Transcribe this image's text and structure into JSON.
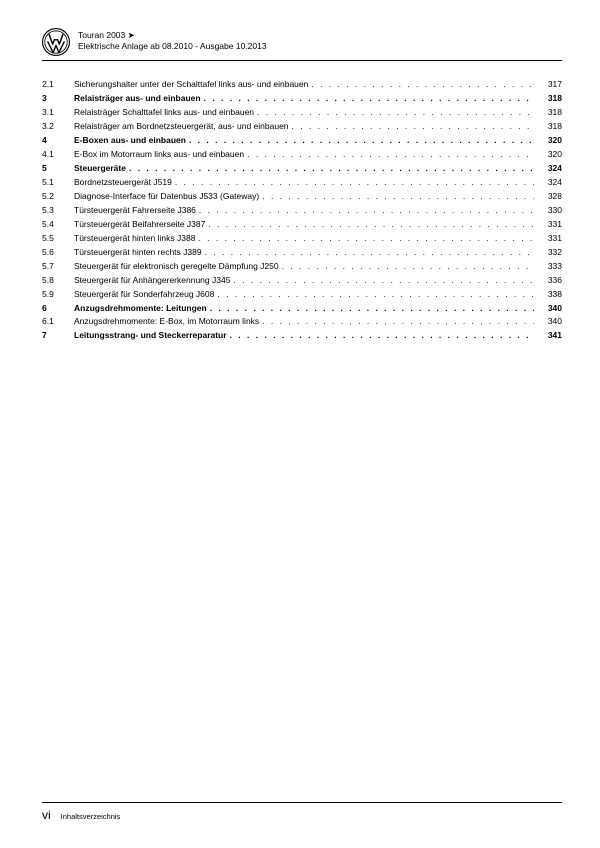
{
  "header": {
    "line1": "Touran 2003 ➤",
    "line2": "Elektrische Anlage ab 08.2010 - Ausgabe 10.2013"
  },
  "toc": [
    {
      "num": "2.1",
      "title": "Sicherungshalter unter der Schalttafel links aus- und einbauen",
      "page": "317",
      "bold": false
    },
    {
      "num": "3",
      "title": "Relaisträger aus- und einbauen",
      "page": "318",
      "bold": true
    },
    {
      "num": "3.1",
      "title": "Relaisträger Schalttafel links aus- und einbauen",
      "page": "318",
      "bold": false
    },
    {
      "num": "3.2",
      "title": "Relaisträger am Bordnetzsteuergerät, aus- und einbauen",
      "page": "318",
      "bold": false
    },
    {
      "num": "4",
      "title": "E-Boxen aus- und einbauen",
      "page": "320",
      "bold": true
    },
    {
      "num": "4.1",
      "title": "E-Box im Motorraum links aus- und einbauen",
      "page": "320",
      "bold": false
    },
    {
      "num": "5",
      "title": "Steuergeräte",
      "page": "324",
      "bold": true
    },
    {
      "num": "5.1",
      "title": "Bordnetzsteuergerät J519",
      "page": "324",
      "bold": false
    },
    {
      "num": "5.2",
      "title": "Diagnose-Interface für Datenbus J533 (Gateway)",
      "page": "328",
      "bold": false
    },
    {
      "num": "5.3",
      "title": "Türsteuergerät Fahrerseite J386",
      "page": "330",
      "bold": false
    },
    {
      "num": "5.4",
      "title": "Türsteuergerät Beifahrerseite J387",
      "page": "331",
      "bold": false
    },
    {
      "num": "5.5",
      "title": "Türsteuergerät hinten links J388",
      "page": "331",
      "bold": false
    },
    {
      "num": "5.6",
      "title": "Türsteuergerät hinten rechts J389",
      "page": "332",
      "bold": false
    },
    {
      "num": "5.7",
      "title": "Steuergerät für elektronisch geregelte Dämpfung J250",
      "page": "333",
      "bold": false
    },
    {
      "num": "5.8",
      "title": "Steuergerät für Anhängererkennung J345",
      "page": "336",
      "bold": false
    },
    {
      "num": "5.9",
      "title": "Steuergerät für Sonderfahrzeug J608",
      "page": "338",
      "bold": false
    },
    {
      "num": "6",
      "title": "Anzugsdrehmomente: Leitungen",
      "page": "340",
      "bold": true
    },
    {
      "num": "6.1",
      "title": "Anzugsdrehmomente: E-Box, im Motorraum links",
      "page": "340",
      "bold": false
    },
    {
      "num": "7",
      "title": "Leitungsstrang- und Steckerreparatur",
      "page": "341",
      "bold": true
    }
  ],
  "footer": {
    "pagenum": "vi",
    "label": "Inhaltsverzeichnis"
  },
  "colors": {
    "text": "#000000",
    "background": "#ffffff"
  }
}
